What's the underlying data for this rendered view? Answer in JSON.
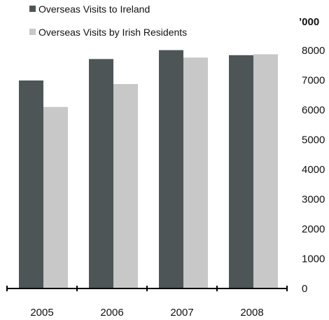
{
  "chart_data": {
    "type": "bar",
    "categories": [
      "2005",
      "2006",
      "2007",
      "2008"
    ],
    "series": [
      {
        "name": "Overseas Visits to Ireland",
        "color": "#4d5557",
        "values": [
          6990,
          7710,
          8010,
          7840
        ]
      },
      {
        "name": "Overseas Visits by Irish Residents",
        "color": "#c8c8c8",
        "values": [
          6100,
          6870,
          7760,
          7870
        ]
      }
    ],
    "y_unit_label": "’000",
    "ylim": [
      0,
      8000
    ],
    "yticks": [
      "0",
      "1000",
      "2000",
      "3000",
      "4000",
      "5000",
      "6000",
      "7000",
      "8000"
    ],
    "y_axis_side": "right",
    "grid": false,
    "legend_position": "top-left"
  }
}
